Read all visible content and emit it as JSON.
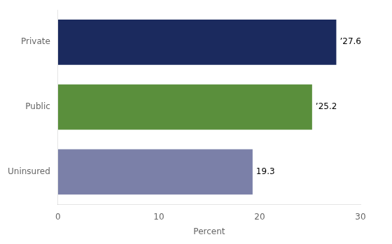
{
  "chart_data": {
    "type": "bar",
    "orientation": "horizontal",
    "categories": [
      "Uninsured",
      "Public",
      "Private"
    ],
    "values": [
      19.3,
      25.2,
      27.6
    ],
    "value_labels": [
      "19.3",
      "’25.2",
      "’27.6"
    ],
    "colors": [
      "#7b80a8",
      "#5a8f3c",
      "#1b2a5e"
    ],
    "xlabel": "Percent",
    "xlim": [
      0,
      30
    ],
    "xticks": [
      0,
      10,
      20,
      30
    ],
    "grid": false,
    "data_labels": true
  }
}
